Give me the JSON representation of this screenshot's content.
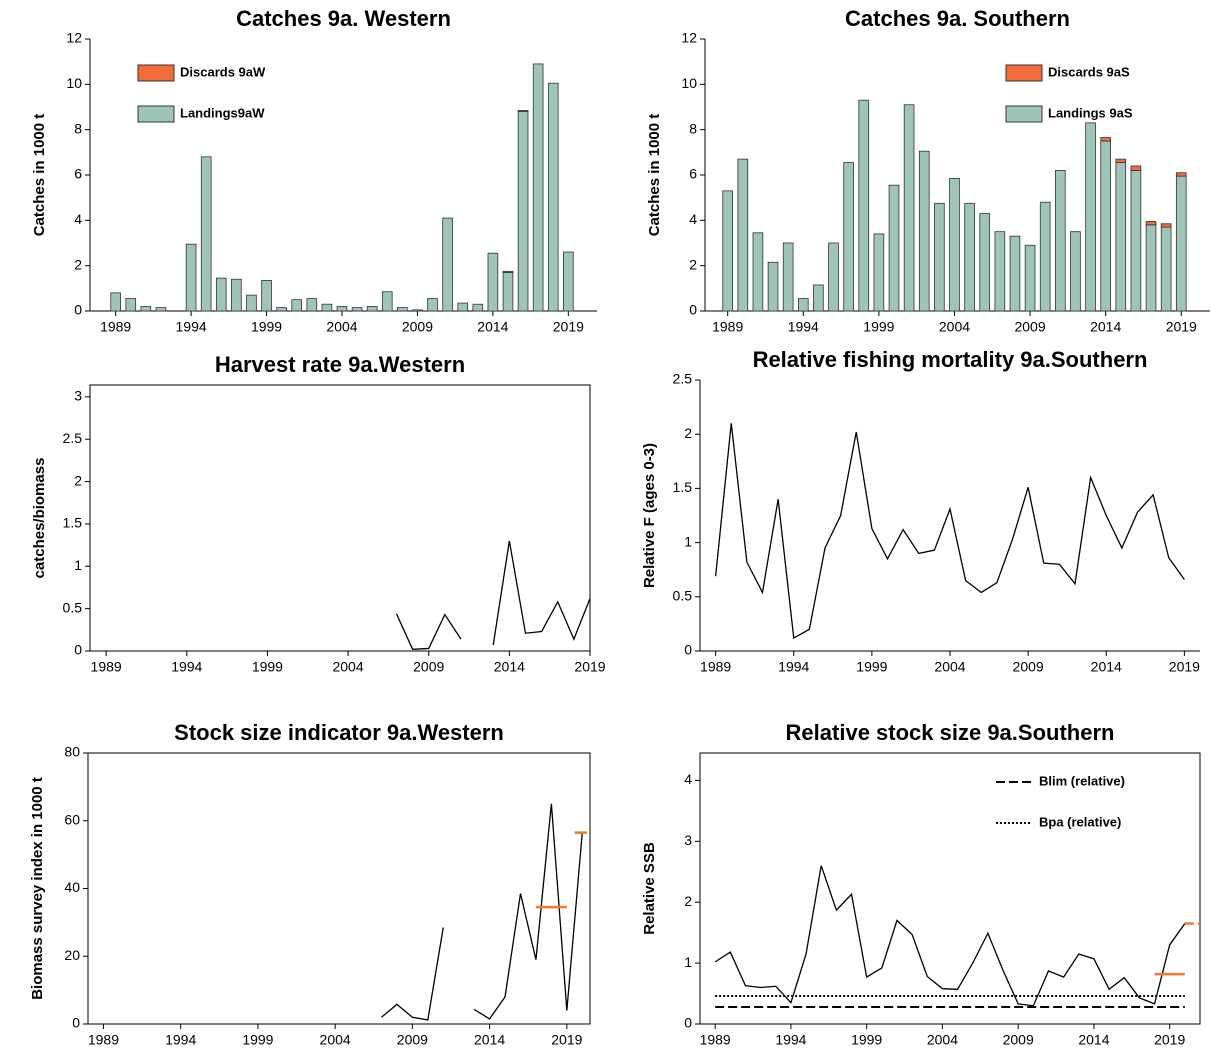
{
  "chart_data": [
    {
      "type": "bar",
      "title": "Catches 9a. Western",
      "y_label": "Catches in 1000 t",
      "x": [
        1989,
        1990,
        1991,
        1992,
        1993,
        1994,
        1995,
        1996,
        1997,
        1998,
        1999,
        2000,
        2001,
        2002,
        2003,
        2004,
        2005,
        2006,
        2007,
        2008,
        2009,
        2010,
        2011,
        2012,
        2013,
        2014,
        2015,
        2016,
        2017,
        2018,
        2019
      ],
      "series": [
        {
          "name": "Landings9aW",
          "color": "#9fc5b8",
          "values": [
            0.8,
            0.55,
            0.2,
            0.15,
            0,
            2.95,
            6.8,
            1.45,
            1.4,
            0.7,
            1.35,
            0.15,
            0.5,
            0.55,
            0.3,
            0.2,
            0.15,
            0.2,
            0.85,
            0.15,
            0.05,
            0.55,
            4.1,
            0.35,
            0.3,
            2.55,
            1.7,
            8.8,
            10.9,
            10.05,
            2.6
          ]
        },
        {
          "name": "Discards 9aW",
          "color": "#f26b3a",
          "values": [
            0,
            0,
            0,
            0,
            0,
            0,
            0,
            0,
            0,
            0,
            0,
            0,
            0,
            0,
            0,
            0,
            0,
            0,
            0,
            0,
            0,
            0,
            0,
            0,
            0,
            0,
            0.05,
            0.05,
            0,
            0,
            0
          ]
        }
      ],
      "xlim": [
        1987.3,
        2020.9
      ],
      "xticks": [
        1989,
        1994,
        1999,
        2004,
        2009,
        2014,
        2019
      ],
      "ylim": [
        0,
        12
      ],
      "yticks": [
        0,
        2,
        4,
        6,
        8,
        10,
        12
      ],
      "legend": "upper left",
      "frame": false
    },
    {
      "type": "bar",
      "title": "Catches 9a. Southern",
      "y_label": "Catches in 1000 t",
      "x": [
        1989,
        1990,
        1991,
        1992,
        1993,
        1994,
        1995,
        1996,
        1997,
        1998,
        1999,
        2000,
        2001,
        2002,
        2003,
        2004,
        2005,
        2006,
        2007,
        2008,
        2009,
        2010,
        2011,
        2012,
        2013,
        2014,
        2015,
        2016,
        2017,
        2018,
        2019
      ],
      "series": [
        {
          "name": "Landings 9aS",
          "color": "#9fc5b8",
          "values": [
            5.3,
            6.7,
            3.45,
            2.15,
            3.0,
            0.55,
            1.15,
            3.0,
            6.55,
            9.3,
            3.4,
            5.55,
            9.1,
            7.05,
            4.75,
            5.85,
            4.75,
            4.3,
            3.5,
            3.3,
            2.9,
            4.8,
            6.2,
            3.5,
            8.3,
            7.5,
            6.55,
            6.2,
            3.8,
            3.7,
            5.95
          ]
        },
        {
          "name": "Discards 9aS",
          "color": "#f26b3a",
          "values": [
            0,
            0,
            0,
            0,
            0,
            0,
            0,
            0,
            0,
            0,
            0,
            0,
            0,
            0,
            0,
            0,
            0,
            0,
            0,
            0,
            0,
            0,
            0,
            0,
            0,
            0.15,
            0.15,
            0.2,
            0.15,
            0.15,
            0.15
          ]
        }
      ],
      "xlim": [
        1987.5,
        2020.9
      ],
      "xticks": [
        1989,
        1994,
        1999,
        2004,
        2009,
        2014,
        2019
      ],
      "ylim": [
        0,
        12
      ],
      "yticks": [
        0,
        2,
        4,
        6,
        8,
        10,
        12
      ],
      "legend": "upper right",
      "frame": false
    },
    {
      "type": "line",
      "title": "Harvest rate 9a.Western",
      "y_label": "catches/biomass",
      "x": [
        2007,
        2008,
        2009,
        2010,
        2011,
        2012,
        2013,
        2014,
        2015,
        2016,
        2017,
        2018,
        2019
      ],
      "series": [
        {
          "color": "#000000",
          "values": [
            0.44,
            0.02,
            0.03,
            0.43,
            0.14,
            null,
            0.07,
            1.3,
            0.21,
            0.23,
            0.58,
            0.14,
            0.62
          ]
        }
      ],
      "xlim": [
        1988,
        2019
      ],
      "xticks": [
        1989,
        1994,
        1999,
        2004,
        2009,
        2014,
        2019
      ],
      "ylim": [
        0,
        3.14
      ],
      "yticks": [
        0,
        0.5,
        1,
        1.5,
        2,
        2.5,
        3
      ],
      "frame": true
    },
    {
      "type": "line",
      "title": "Relative fishing mortality 9a.Southern",
      "y_label": "Relative F (ages 0-3)",
      "x": [
        1989,
        1990,
        1991,
        1992,
        1993,
        1994,
        1995,
        1996,
        1997,
        1998,
        1999,
        2000,
        2001,
        2002,
        2003,
        2004,
        2005,
        2006,
        2007,
        2008,
        2009,
        2010,
        2011,
        2012,
        2013,
        2014,
        2015,
        2016,
        2017,
        2018,
        2019
      ],
      "series": [
        {
          "color": "#000000",
          "values": [
            0.69,
            2.1,
            0.82,
            0.54,
            1.4,
            0.12,
            0.2,
            0.95,
            1.25,
            2.02,
            1.13,
            0.85,
            1.12,
            0.9,
            0.93,
            1.31,
            0.65,
            0.54,
            0.63,
            1.03,
            1.51,
            0.81,
            0.8,
            0.62,
            1.6,
            1.25,
            0.95,
            1.28,
            1.44,
            0.86,
            0.66
          ]
        }
      ],
      "xlim": [
        1988,
        2020
      ],
      "xticks": [
        1989,
        1994,
        1999,
        2004,
        2009,
        2014,
        2019
      ],
      "ylim": [
        0,
        2.5
      ],
      "yticks": [
        0,
        0.5,
        1,
        1.5,
        2,
        2.5
      ],
      "frame": false
    },
    {
      "type": "line",
      "title": "Stock size indicator 9a.Western",
      "y_label": "Biomass survey index in 1000 t",
      "x": [
        2007,
        2008,
        2009,
        2010,
        2011,
        2012,
        2013,
        2014,
        2015,
        2016,
        2017,
        2018,
        2019,
        2020
      ],
      "series": [
        {
          "color": "#000000",
          "values": [
            2,
            5.8,
            2,
            1.2,
            28.5,
            null,
            4.3,
            1.5,
            8,
            38.5,
            19,
            65,
            4,
            56.5
          ]
        }
      ],
      "segments": [
        {
          "x0": 2017,
          "x1": 2019,
          "value": 34.5,
          "color": "#f07a30",
          "style": "solid"
        },
        {
          "x0": 2019.5,
          "x1": 2020.3,
          "value": 56.5,
          "color": "#f07a30",
          "style": "solid"
        }
      ],
      "xlim": [
        1988,
        2020.5
      ],
      "xticks": [
        1989,
        1994,
        1999,
        2004,
        2009,
        2014,
        2019
      ],
      "ylim": [
        0,
        80
      ],
      "yticks": [
        0,
        20,
        40,
        60,
        80
      ],
      "frame": true
    },
    {
      "type": "line",
      "title": "Relative stock size 9a.Southern",
      "y_label": "Relative SSB",
      "x": [
        1989,
        1990,
        1991,
        1992,
        1993,
        1994,
        1995,
        1996,
        1997,
        1998,
        1999,
        2000,
        2001,
        2002,
        2003,
        2004,
        2005,
        2006,
        2007,
        2008,
        2009,
        2010,
        2011,
        2012,
        2013,
        2014,
        2015,
        2016,
        2017,
        2018,
        2019,
        2020
      ],
      "series": [
        {
          "color": "#000000",
          "values": [
            1.02,
            1.18,
            0.63,
            0.6,
            0.62,
            0.35,
            1.15,
            2.6,
            1.87,
            2.13,
            0.77,
            0.92,
            1.7,
            1.47,
            0.78,
            0.58,
            0.57,
            1.0,
            1.49,
            0.88,
            0.33,
            0.3,
            0.87,
            0.77,
            1.15,
            1.07,
            0.57,
            0.76,
            0.43,
            0.33,
            1.3,
            1.65
          ]
        }
      ],
      "segments": [
        {
          "x0": 2018,
          "x1": 2020,
          "value": 0.82,
          "color": "#f07a30",
          "style": "solid"
        },
        {
          "x0": 2020,
          "x1": 2021,
          "value": 1.65,
          "color": "#f07a30",
          "style": "dashed"
        }
      ],
      "hlines": [
        {
          "name": "Blim (relative)",
          "value": 0.28,
          "x0": 1989,
          "x1": 2020,
          "style": "dashed"
        },
        {
          "name": "Bpa (relative)",
          "value": 0.46,
          "x0": 1989,
          "x1": 2020,
          "style": "dotted"
        }
      ],
      "xlim": [
        1988,
        2021
      ],
      "xticks": [
        1989,
        1994,
        1999,
        2004,
        2009,
        2014,
        2019
      ],
      "ylim": [
        0,
        4.45
      ],
      "yticks": [
        0,
        1,
        2,
        3,
        4
      ],
      "legend": "upper right",
      "frame": true
    }
  ]
}
